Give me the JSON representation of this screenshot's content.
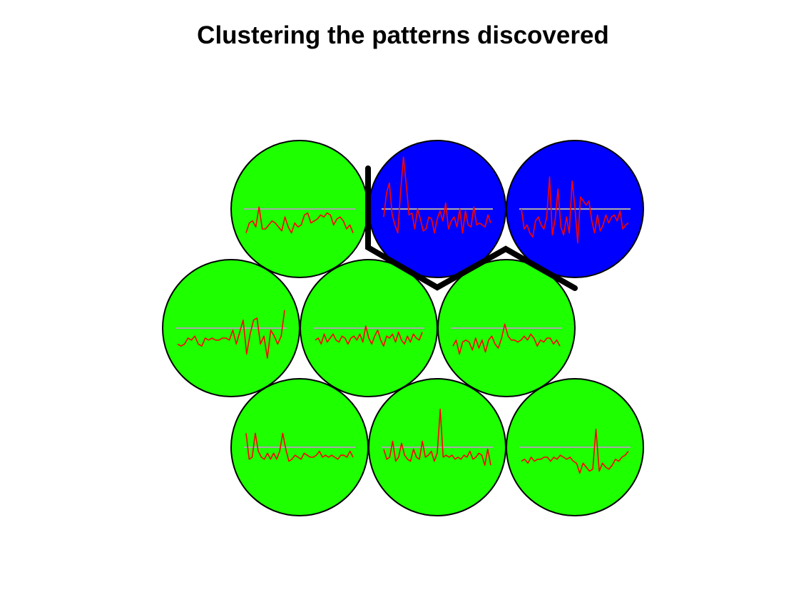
{
  "title": "Clustering the patterns discovered",
  "colors": {
    "cluster_green": "#1eff00",
    "cluster_blue": "#0000ff",
    "cell_outline": "#000000",
    "series_line": "#ff0000",
    "baseline": "#aaaaaa",
    "boundary": "#000000"
  },
  "grid": {
    "rows": 3,
    "cols": 3,
    "layout": "hexagonal"
  },
  "cells": [
    {
      "id": "r1c1",
      "cluster": "green",
      "series": [
        -1.2,
        -0.7,
        -0.6,
        -0.9,
        0.1,
        -1.0,
        -1.0,
        -0.8,
        -0.6,
        -0.7,
        -0.9,
        -1.1,
        -0.4,
        -0.9,
        -1.2,
        -0.7,
        -0.9,
        -0.8,
        -0.3,
        -0.2,
        -0.7,
        -0.6,
        -0.5,
        -0.3,
        -0.4,
        -0.2,
        -0.3,
        -0.8,
        -0.5,
        -0.4,
        -0.6,
        -1.0,
        -0.8,
        -1.2
      ]
    },
    {
      "id": "r1c2",
      "cluster": "blue",
      "series": [
        -0.4,
        0.8,
        1.3,
        -0.3,
        -0.8,
        -1.2,
        0.9,
        2.6,
        1.2,
        -0.3,
        -0.2,
        -1.0,
        0.0,
        -0.5,
        -1.1,
        -1.0,
        -0.4,
        -0.5,
        -1.2,
        -0.5,
        -0.1,
        -0.6,
        0.3,
        -1.0,
        -0.6,
        -0.4,
        -0.9,
        0.0,
        -1.2,
        -0.1,
        -0.8,
        -0.9,
        0.1,
        -0.8,
        -0.7,
        -0.8,
        -0.9,
        -0.3,
        -0.7
      ]
    },
    {
      "id": "r1c3",
      "cluster": "blue",
      "series": [
        0.0,
        -1.0,
        -0.8,
        -1.2,
        -1.4,
        -0.6,
        -0.4,
        -0.8,
        -1.0,
        -0.4,
        1.6,
        -1.3,
        -0.5,
        1.0,
        -0.9,
        -1.3,
        -0.4,
        -1.2,
        1.4,
        0.1,
        -1.7,
        0.6,
        0.4,
        0.2,
        0.4,
        -0.6,
        -1.2,
        -0.3,
        -1.1,
        -0.8,
        -0.3,
        -0.7,
        -0.4,
        -0.3,
        -0.6,
        -0.1,
        -1.0,
        -0.8,
        -0.7
      ]
    },
    {
      "id": "r2c1",
      "cluster": "green",
      "series": [
        -0.8,
        -0.9,
        -0.8,
        -0.5,
        -0.6,
        -0.4,
        -0.8,
        -0.9,
        -0.5,
        -0.6,
        -0.5,
        -0.6,
        -0.6,
        -0.5,
        -0.5,
        -0.6,
        -0.1,
        -0.8,
        -0.2,
        0.4,
        -1.3,
        -0.3,
        0.4,
        0.5,
        -0.8,
        -0.4,
        -1.5,
        -0.1,
        -0.4,
        -0.8,
        -0.4,
        0.9
      ]
    },
    {
      "id": "r2c2",
      "cluster": "green",
      "series": [
        -0.6,
        -0.5,
        -0.8,
        -0.3,
        -0.7,
        -0.5,
        -0.3,
        -0.6,
        -0.7,
        -0.4,
        -0.5,
        -0.8,
        -0.5,
        -0.4,
        -0.6,
        -0.3,
        -0.7,
        0.1,
        -0.5,
        -0.8,
        -0.4,
        -0.1,
        -0.6,
        -0.9,
        -0.4,
        -0.5,
        -0.3,
        -0.7,
        -0.2,
        -0.6,
        -0.8,
        -0.4,
        -0.7,
        -0.3,
        -0.5,
        -0.6,
        -0.2
      ]
    },
    {
      "id": "r2c3",
      "cluster": "green",
      "series": [
        -0.9,
        -0.6,
        -1.3,
        -0.7,
        -0.6,
        -0.7,
        -1.1,
        -0.5,
        -1.0,
        -0.6,
        -1.2,
        -0.6,
        -0.4,
        -0.8,
        -1.0,
        -0.5,
        0.2,
        -0.4,
        -0.6,
        -0.6,
        -0.7,
        -0.6,
        -0.4,
        -0.6,
        -0.3,
        -0.5,
        -0.9,
        -0.6,
        -0.7,
        -0.5,
        -0.5,
        -0.8,
        -0.6,
        -0.9
      ]
    },
    {
      "id": "r3c1",
      "cluster": "green",
      "series": [
        0.7,
        -0.6,
        -0.5,
        0.7,
        -0.2,
        -0.5,
        -0.6,
        -0.3,
        -0.6,
        -0.3,
        -0.6,
        -0.2,
        0.7,
        -0.1,
        -0.7,
        -0.6,
        -0.4,
        -0.5,
        -0.6,
        -0.3,
        -0.4,
        -0.5,
        -0.5,
        -0.4,
        -0.2,
        -0.5,
        -0.4,
        -0.5,
        -0.4,
        -0.5,
        -0.6,
        -0.4,
        -0.4,
        -0.5,
        -0.2,
        -0.5
      ]
    },
    {
      "id": "r3c2",
      "cluster": "green",
      "series": [
        -0.1,
        -0.6,
        -0.5,
        0.3,
        -0.7,
        -0.5,
        0.2,
        -0.4,
        -0.6,
        -0.7,
        -0.1,
        -0.5,
        -0.6,
        0.3,
        -0.5,
        -0.4,
        -0.2,
        -0.7,
        -0.3,
        1.9,
        -0.5,
        -0.4,
        -0.5,
        -0.4,
        -0.6,
        -0.5,
        -0.6,
        -0.4,
        -0.5,
        -0.2,
        -0.6,
        -0.5,
        -0.3,
        -0.4,
        -0.9,
        -0.1,
        -0.9
      ]
    },
    {
      "id": "r3c3",
      "cluster": "green",
      "series": [
        -0.7,
        -0.6,
        -0.8,
        -0.5,
        -0.7,
        -0.6,
        -0.6,
        -0.5,
        -0.5,
        -0.7,
        -0.5,
        -0.6,
        -0.4,
        -0.5,
        -0.6,
        -0.5,
        -0.7,
        -0.8,
        -1.3,
        -0.8,
        -1.0,
        -1.2,
        -1.1,
        0.9,
        -1.2,
        -0.8,
        -1.0,
        -1.1,
        -0.9,
        -0.6,
        -0.7,
        -0.5,
        -0.4,
        -0.2
      ]
    }
  ]
}
